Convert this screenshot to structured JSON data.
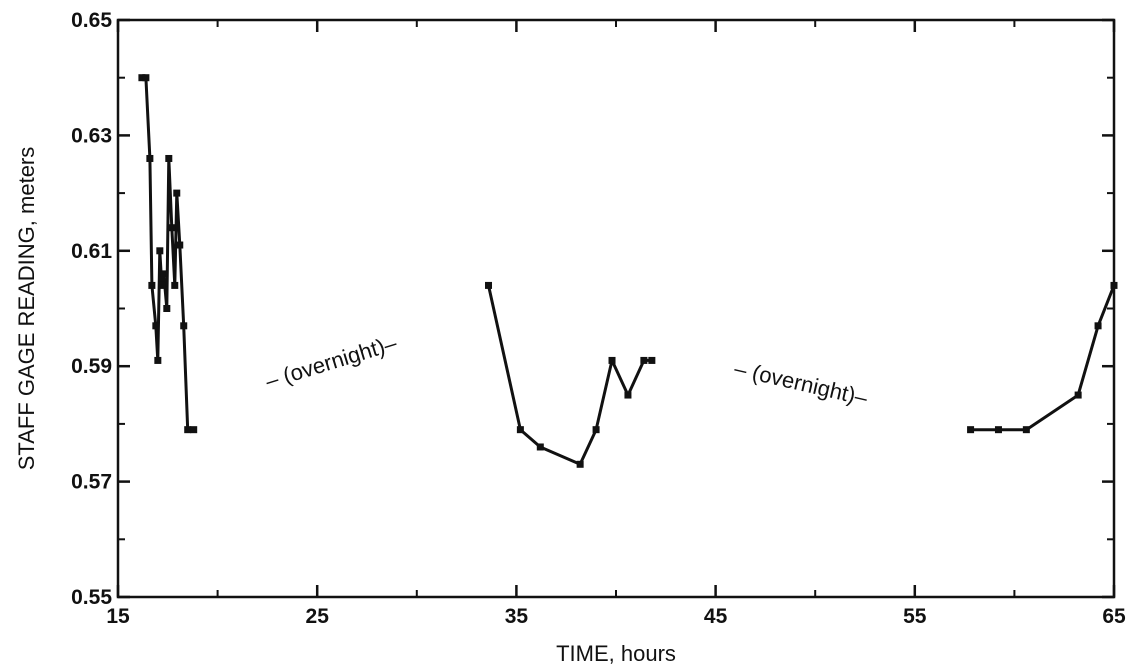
{
  "chart_data": {
    "type": "line",
    "xlabel": "TIME, hours",
    "ylabel": "STAFF GAGE READING, meters",
    "xlim": [
      15,
      65
    ],
    "ylim": [
      0.55,
      0.65
    ],
    "x_ticks": [
      15,
      25,
      35,
      45,
      55,
      65
    ],
    "x_tick_labels": [
      "15",
      "25",
      "35",
      "45",
      "55",
      "65"
    ],
    "y_ticks": [
      0.55,
      0.57,
      0.59,
      0.61,
      0.63,
      0.65
    ],
    "y_tick_labels": [
      "0.55",
      "0.57",
      "0.59",
      "0.61",
      "0.63",
      "0.65"
    ],
    "grid": false,
    "series": [
      {
        "values": [
          [
            16.2,
            0.64
          ],
          [
            16.4,
            0.64
          ],
          [
            16.6,
            0.626
          ],
          [
            16.7,
            0.604
          ],
          [
            16.9,
            0.597
          ],
          [
            17.0,
            0.591
          ],
          [
            17.1,
            0.61
          ],
          [
            17.2,
            0.604
          ],
          [
            17.3,
            0.606
          ],
          [
            17.45,
            0.6
          ],
          [
            17.55,
            0.626
          ],
          [
            17.7,
            0.614
          ],
          [
            17.85,
            0.604
          ],
          [
            17.95,
            0.62
          ],
          [
            18.1,
            0.611
          ],
          [
            18.3,
            0.597
          ],
          [
            18.5,
            0.579
          ],
          [
            18.8,
            0.579
          ]
        ]
      },
      {
        "values": [
          [
            33.6,
            0.604
          ],
          [
            35.2,
            0.579
          ],
          [
            36.2,
            0.576
          ],
          [
            38.2,
            0.573
          ],
          [
            39.0,
            0.579
          ],
          [
            39.8,
            0.591
          ],
          [
            40.6,
            0.585
          ],
          [
            41.4,
            0.591
          ],
          [
            41.8,
            0.591
          ]
        ]
      },
      {
        "values": [
          [
            57.8,
            0.579
          ],
          [
            59.2,
            0.579
          ],
          [
            60.6,
            0.579
          ],
          [
            63.2,
            0.585
          ],
          [
            64.2,
            0.597
          ],
          [
            65.0,
            0.604
          ]
        ]
      }
    ],
    "annotations": [
      {
        "text": "– (overnight)–",
        "x": 25.8,
        "y": 0.5895,
        "angle": -17
      },
      {
        "text": "– (overnight)–",
        "x": 49.2,
        "y": 0.5858,
        "angle": 13
      }
    ],
    "color": "#111111"
  }
}
